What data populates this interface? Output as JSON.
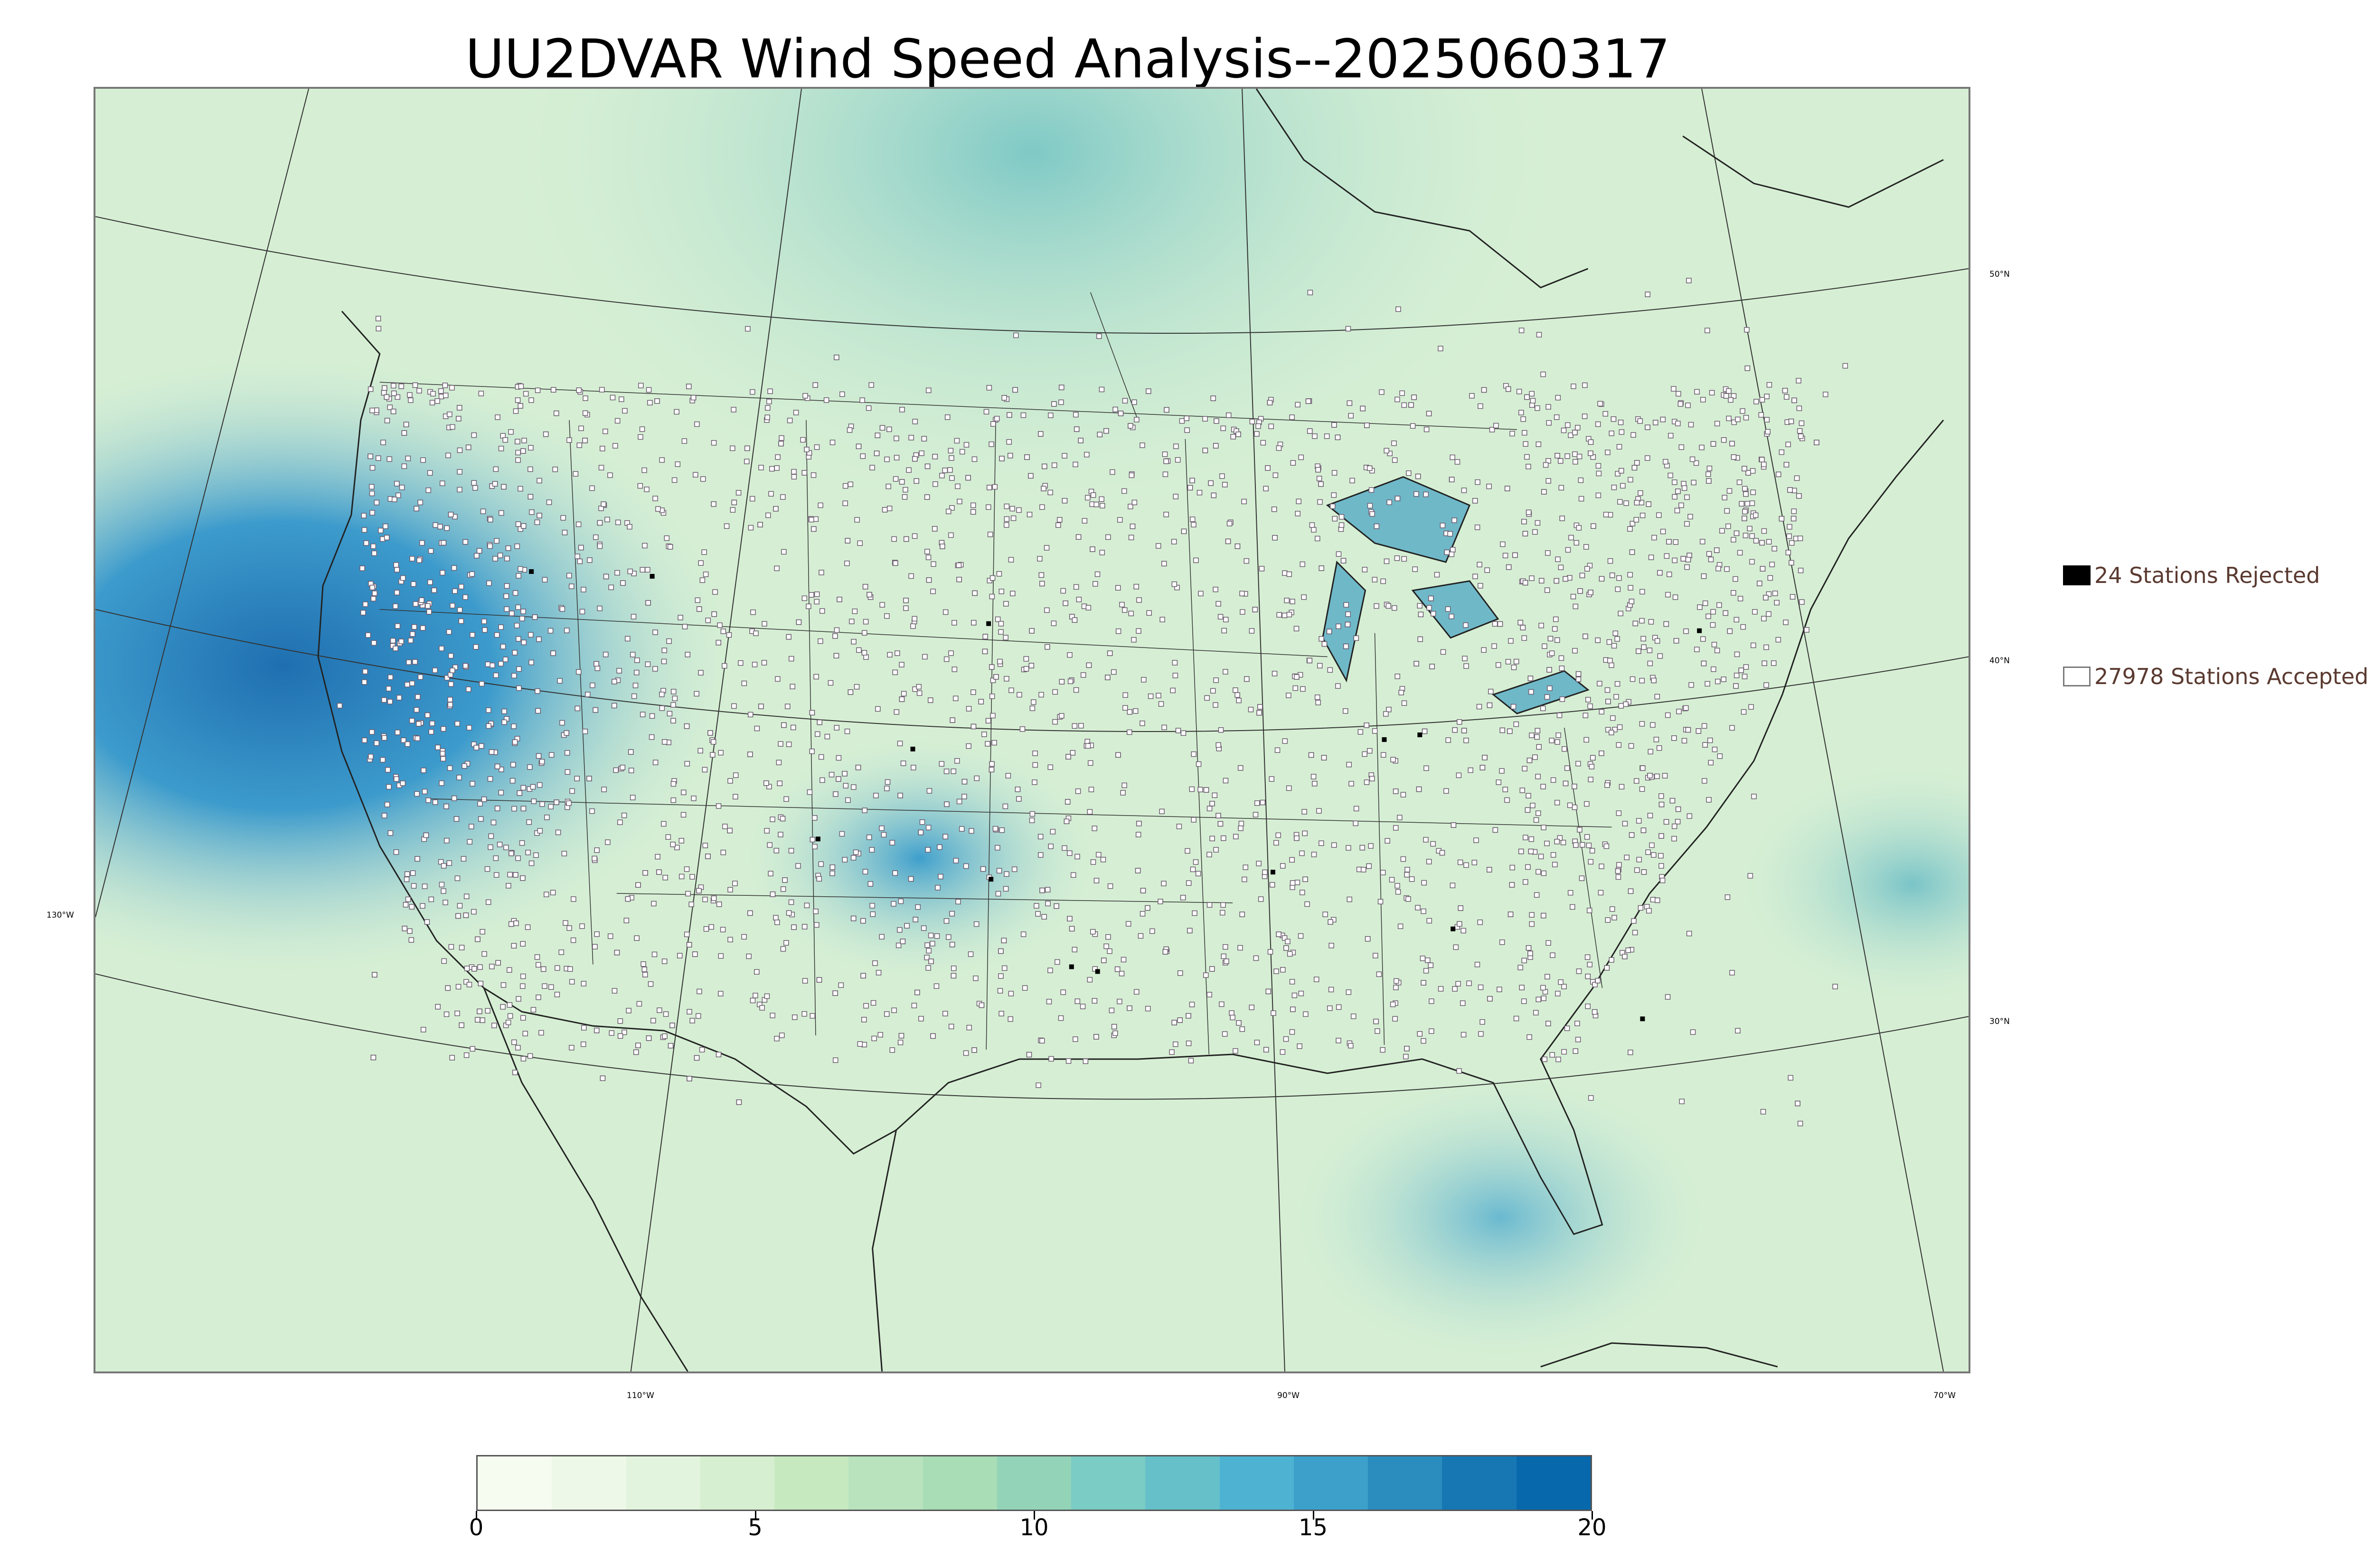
{
  "title": "UU2DVAR Wind Speed Analysis--2025060317",
  "map": {
    "longitude_labels": [
      {
        "text": "130°W",
        "axis": "left"
      },
      {
        "text": "110°W",
        "axis": "bottom"
      },
      {
        "text": "90°W",
        "axis": "bottom"
      },
      {
        "text": "70°W",
        "axis": "bottom"
      }
    ],
    "latitude_labels": [
      {
        "text": "50°N",
        "axis": "right"
      },
      {
        "text": "40°N",
        "axis": "right"
      },
      {
        "text": "30°N",
        "axis": "right"
      }
    ],
    "colors": {
      "land_base": "#d6efd4",
      "ocean_high": "#2b83ba",
      "coastline": "#222222",
      "station_fill": "#ffffff",
      "station_edge": "#6b5b6e",
      "rejected_station": "#000000"
    }
  },
  "legend": {
    "rejected": {
      "count": "24",
      "label": "24 Stations Rejected"
    },
    "accepted": {
      "count": "27978",
      "label": "27978 Stations Accepted"
    }
  },
  "colorbar": {
    "min": 0,
    "max": 20,
    "ticks": [
      "0",
      "5",
      "10",
      "15",
      "20"
    ],
    "colors": [
      "#f7fcf0",
      "#eef8e8",
      "#e2f4dd",
      "#d6efd0",
      "#c7e9c0",
      "#b8e3bd",
      "#a8ddb5",
      "#93d4b9",
      "#7bccc4",
      "#66c0c9",
      "#4eb3d3",
      "#3ca0cb",
      "#2b8cbe",
      "#1777b3",
      "#0868ac"
    ]
  }
}
